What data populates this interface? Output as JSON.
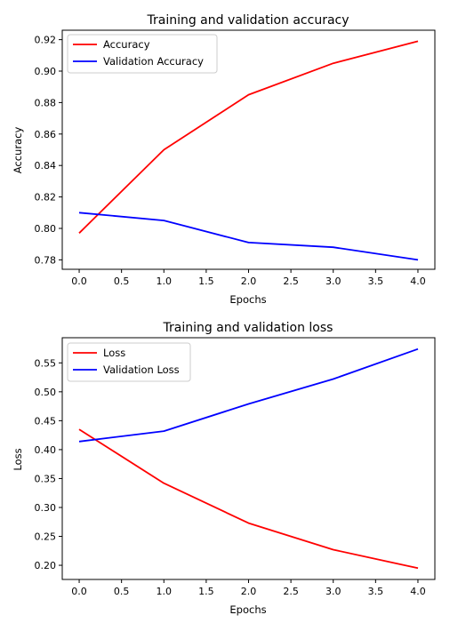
{
  "chart_data": [
    {
      "type": "line",
      "title": "Training and validation accuracy",
      "xlabel": "Epochs",
      "ylabel": "Accuracy",
      "x": [
        0,
        1,
        2,
        3,
        4
      ],
      "xlim": [
        -0.2,
        4.2
      ],
      "ylim": [
        0.774,
        0.926
      ],
      "xticks": [
        "0.0",
        "0.5",
        "1.0",
        "1.5",
        "2.0",
        "2.5",
        "3.0",
        "3.5",
        "4.0"
      ],
      "yticks": [
        "0.78",
        "0.80",
        "0.82",
        "0.84",
        "0.86",
        "0.88",
        "0.90",
        "0.92"
      ],
      "grid": false,
      "legend": "top-left",
      "series": [
        {
          "name": "Accuracy",
          "color": "#ff0000",
          "values": [
            0.797,
            0.85,
            0.885,
            0.905,
            0.919
          ]
        },
        {
          "name": "Validation Accuracy",
          "color": "#0000ff",
          "values": [
            0.81,
            0.805,
            0.791,
            0.788,
            0.78
          ]
        }
      ]
    },
    {
      "type": "line",
      "title": "Training and validation loss",
      "xlabel": "Epochs",
      "ylabel": "Loss",
      "x": [
        0,
        1,
        2,
        3,
        4
      ],
      "xlim": [
        -0.2,
        4.2
      ],
      "ylim": [
        0.1755,
        0.5935
      ],
      "xticks": [
        "0.0",
        "0.5",
        "1.0",
        "1.5",
        "2.0",
        "2.5",
        "3.0",
        "3.5",
        "4.0"
      ],
      "yticks": [
        "0.20",
        "0.25",
        "0.30",
        "0.35",
        "0.40",
        "0.45",
        "0.50",
        "0.55"
      ],
      "grid": false,
      "legend": "top-left",
      "series": [
        {
          "name": "Loss",
          "color": "#ff0000",
          "values": [
            0.435,
            0.342,
            0.273,
            0.227,
            0.195
          ]
        },
        {
          "name": "Validation Loss",
          "color": "#0000ff",
          "values": [
            0.414,
            0.432,
            0.479,
            0.522,
            0.574
          ]
        }
      ]
    }
  ]
}
